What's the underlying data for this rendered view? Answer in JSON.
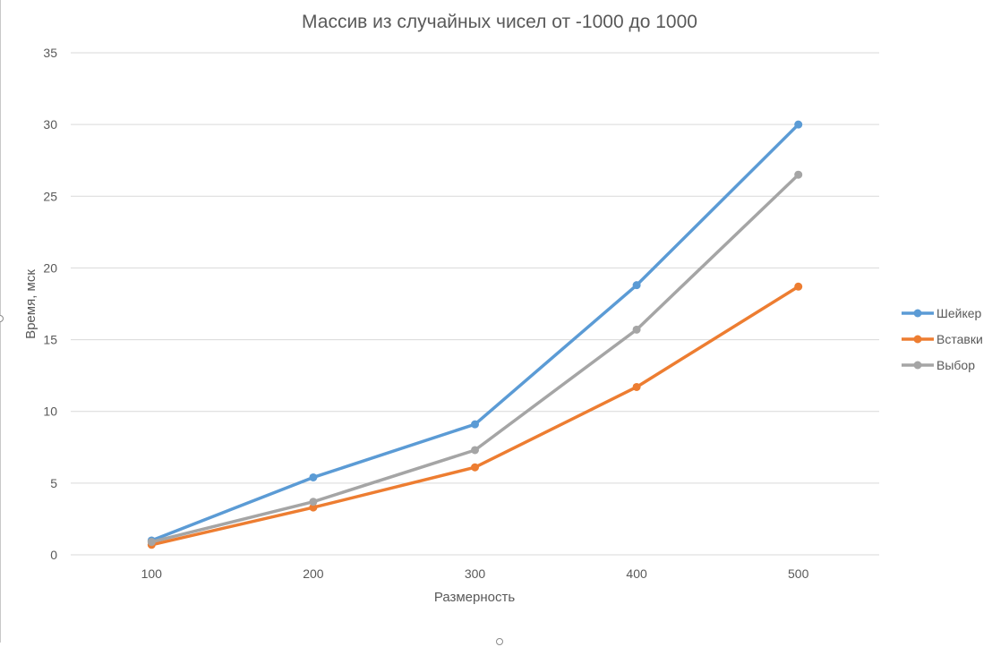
{
  "chart_data": {
    "type": "line",
    "title": "Массив из случайных чисел от -1000 до 1000",
    "xlabel": "Размерность",
    "ylabel": "Время, мск",
    "categories": [
      "100",
      "200",
      "300",
      "400",
      "500"
    ],
    "ylim": [
      0,
      35
    ],
    "yticks": [
      "0",
      "5",
      "10",
      "15",
      "20",
      "25",
      "30",
      "35"
    ],
    "grid": true,
    "legend_position": "right",
    "series": [
      {
        "name": "Шейкер",
        "color": "#5b9bd5",
        "values": [
          1.0,
          5.4,
          9.1,
          18.8,
          30.0
        ]
      },
      {
        "name": "Вставки",
        "color": "#ed7d31",
        "values": [
          0.7,
          3.3,
          6.1,
          11.7,
          18.7
        ]
      },
      {
        "name": "Выбор",
        "color": "#a5a5a5",
        "values": [
          0.9,
          3.7,
          7.3,
          15.7,
          26.5
        ]
      }
    ]
  }
}
